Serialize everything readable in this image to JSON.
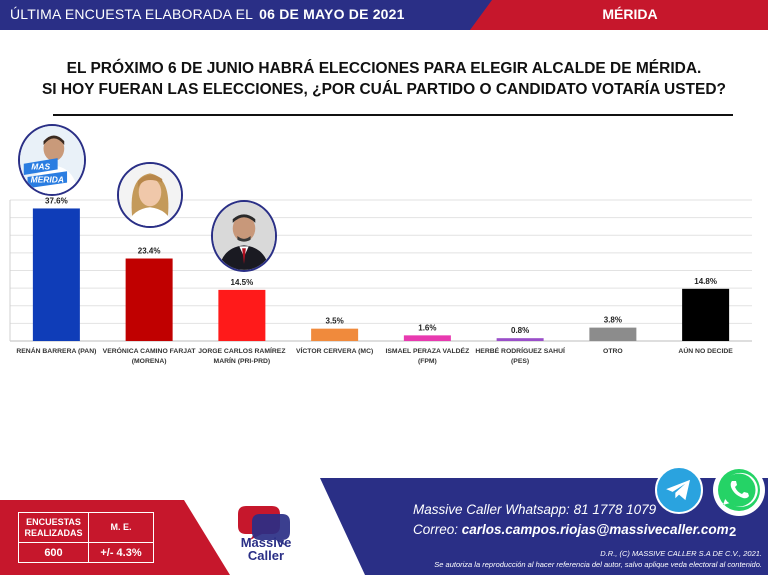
{
  "header": {
    "left_label": "ÚLTIMA ENCUESTA ELABORADA EL",
    "date": "06 DE MAYO DE 2021",
    "city": "MÉRIDA",
    "colors": {
      "blue": "#2a2f86",
      "red": "#c6172c"
    }
  },
  "question": {
    "line1": "EL PRÓXIMO 6 DE JUNIO HABRÁ ELECCIONES PARA ELEGIR ALCALDE DE MÉRIDA.",
    "line2": "SI HOY FUERAN LAS ELECCIONES, ¿POR CUÁL PARTIDO O CANDIDATO VOTARÍA USTED?"
  },
  "photos": {
    "candidate1_badge_line1": "MAS",
    "candidate1_badge_line2": "MERIDA"
  },
  "chart_data": {
    "type": "bar",
    "title": "",
    "xlabel": "",
    "ylabel": "",
    "ylim": [
      0,
      40
    ],
    "grid": true,
    "categories": [
      [
        "RENÁN BARRERA (PAN)"
      ],
      [
        "VERÓNICA CAMINO FARJAT",
        "(MORENA)"
      ],
      [
        "JORGE CARLOS RAMÍREZ",
        "MARÍN (PRI-PRD)"
      ],
      [
        "VÍCTOR CERVERA (MC)"
      ],
      [
        "ISMAEL PERAZA VALDÉZ",
        "(FPM)"
      ],
      [
        "HERBÉ RODRÍGUEZ SAHUÍ",
        "(PES)"
      ],
      [
        "OTRO"
      ],
      [
        "AÚN NO DECIDE"
      ]
    ],
    "values": [
      37.6,
      23.4,
      14.5,
      3.5,
      1.6,
      0.8,
      3.8,
      14.8
    ],
    "value_labels": [
      "37.6%",
      "23.4%",
      "14.5%",
      "3.5%",
      "1.6%",
      "0.8%",
      "3.8%",
      "14.8%"
    ],
    "colors": [
      "#0f3db8",
      "#c00000",
      "#ff1a1a",
      "#f08a3c",
      "#e83ab0",
      "#9a4fc9",
      "#8c8c8c",
      "#000000"
    ]
  },
  "footer": {
    "stats": {
      "header_surveys": [
        "ENCUESTAS",
        "REALIZADAS"
      ],
      "header_me": "M. E.",
      "surveys_value": "600",
      "me_value": "+/- 4.3%"
    },
    "logo_line1": "Massive",
    "logo_line2": "Caller",
    "whatsapp_label": "Massive Caller Whatsapp:",
    "whatsapp_value": "81 1778 1079",
    "email_label": "Correo:",
    "email_value": "carlos.campos.riojas@massivecaller.com",
    "page_number": "2",
    "copyright_line1": "D.R., (C) MASSIVE CALLER S.A DE C.V., 2021.",
    "copyright_line2": "Se autoriza la reproducción al hacer referencia del autor, salvo aplique veda electoral al contenido.",
    "icons": [
      "telegram-icon",
      "whatsapp-icon"
    ]
  }
}
